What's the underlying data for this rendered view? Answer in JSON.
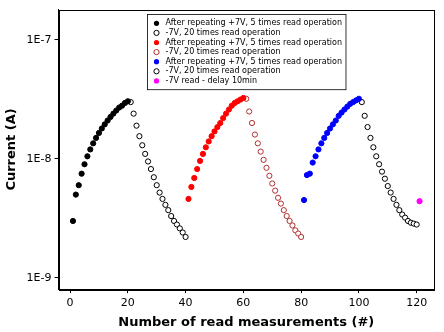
{
  "chart_data": {
    "type": "scatter",
    "x_label": "Number of read measurements (#)",
    "y_label": "Current (A)",
    "log": "y",
    "grid": false,
    "legend": "top",
    "xlim": [
      -4,
      126
    ],
    "xticks": [
      0,
      20,
      40,
      60,
      80,
      100,
      120
    ],
    "ylim": [
      8e-10,
      1.8e-07
    ],
    "yticks": [
      {
        "value": 1e-09,
        "label": "1E-9"
      },
      {
        "value": 1e-08,
        "label": "1E-8"
      },
      {
        "value": 1e-07,
        "label": "1E-7"
      }
    ],
    "series": [
      {
        "name": "After repeating +7V, 5 times read operation",
        "color": "#000000",
        "marker": "circle",
        "x": [
          1,
          2,
          3,
          4,
          5,
          6,
          7,
          8,
          9,
          10,
          11,
          12,
          13,
          14,
          15,
          16,
          17,
          18,
          19,
          20
        ],
        "values": [
          3e-09,
          5e-09,
          6e-09,
          7.5e-09,
          9e-09,
          1.05e-08,
          1.2e-08,
          1.35e-08,
          1.5e-08,
          1.65e-08,
          1.8e-08,
          1.95e-08,
          2.1e-08,
          2.25e-08,
          2.4e-08,
          2.55e-08,
          2.7e-08,
          2.8e-08,
          2.95e-08,
          3.05e-08
        ]
      },
      {
        "name": "-7V, 20 times read operation",
        "color": "#000000",
        "marker": "open_circle",
        "x": [
          21,
          22,
          23,
          24,
          25,
          26,
          27,
          28,
          29,
          30,
          31,
          32,
          33,
          34,
          35,
          36,
          37,
          38,
          39,
          40
        ],
        "values": [
          3e-08,
          2.4e-08,
          1.9e-08,
          1.55e-08,
          1.3e-08,
          1.1e-08,
          9.5e-09,
          8.2e-09,
          7e-09,
          6e-09,
          5.2e-09,
          4.6e-09,
          4.1e-09,
          3.7e-09,
          3.3e-09,
          3e-09,
          2.8e-09,
          2.6e-09,
          2.4e-09,
          2.2e-09
        ]
      },
      {
        "name": "After repeating +7V, 5 times read operation",
        "color": "#ff0000",
        "marker": "circle",
        "x": [
          41,
          42,
          43,
          44,
          45,
          46,
          47,
          48,
          49,
          50,
          51,
          52,
          53,
          54,
          55,
          56,
          57,
          58,
          59,
          60
        ],
        "values": [
          4.6e-09,
          5.8e-09,
          6.9e-09,
          8.2e-09,
          9.6e-09,
          1.1e-08,
          1.25e-08,
          1.4e-08,
          1.55e-08,
          1.7e-08,
          1.85e-08,
          2e-08,
          2.2e-08,
          2.4e-08,
          2.6e-08,
          2.8e-08,
          2.95e-08,
          3.05e-08,
          3.15e-08,
          3.25e-08
        ]
      },
      {
        "name": "-7V, 20 times read operation",
        "color": "#b03030",
        "marker": "open_circle",
        "x": [
          61,
          62,
          63,
          64,
          65,
          66,
          67,
          68,
          69,
          70,
          71,
          72,
          73,
          74,
          75,
          76,
          77,
          78,
          79,
          80
        ],
        "values": [
          3.2e-08,
          2.5e-08,
          2e-08,
          1.6e-08,
          1.35e-08,
          1.15e-08,
          9.8e-09,
          8.4e-09,
          7.2e-09,
          6.2e-09,
          5.4e-09,
          4.7e-09,
          4.2e-09,
          3.7e-09,
          3.3e-09,
          3e-09,
          2.75e-09,
          2.5e-09,
          2.35e-09,
          2.2e-09
        ]
      },
      {
        "name": "After repeating +7V, 5 times read operation",
        "color": "#0000ff",
        "marker": "circle",
        "x": [
          81,
          82,
          83,
          84,
          85,
          86,
          87,
          88,
          89,
          90,
          91,
          92,
          93,
          94,
          95,
          96,
          97,
          98,
          99,
          100
        ],
        "values": [
          4.5e-09,
          7.3e-09,
          7.5e-09,
          9.3e-09,
          1.05e-08,
          1.2e-08,
          1.35e-08,
          1.5e-08,
          1.65e-08,
          1.8e-08,
          1.95e-08,
          2.1e-08,
          2.3e-08,
          2.45e-08,
          2.6e-08,
          2.75e-08,
          2.9e-08,
          3e-08,
          3.1e-08,
          3.2e-08
        ]
      },
      {
        "name": "-7V, 20 times read operation",
        "color": "#000000",
        "marker": "open_circle",
        "x": [
          101,
          102,
          103,
          104,
          105,
          106,
          107,
          108,
          109,
          110,
          111,
          112,
          113,
          114,
          115,
          116,
          117,
          118,
          119,
          120
        ],
        "values": [
          3e-08,
          2.3e-08,
          1.85e-08,
          1.5e-08,
          1.25e-08,
          1.05e-08,
          9e-09,
          7.8e-09,
          6.8e-09,
          5.9e-09,
          5.2e-09,
          4.6e-09,
          4.1e-09,
          3.7e-09,
          3.4e-09,
          3.2e-09,
          3e-09,
          2.9e-09,
          2.85e-09,
          2.8e-09
        ]
      },
      {
        "name": "-7V read - delay 10min",
        "color": "#ff00ff",
        "marker": "circle",
        "x": [
          121
        ],
        "values": [
          4.4e-09
        ]
      }
    ]
  }
}
